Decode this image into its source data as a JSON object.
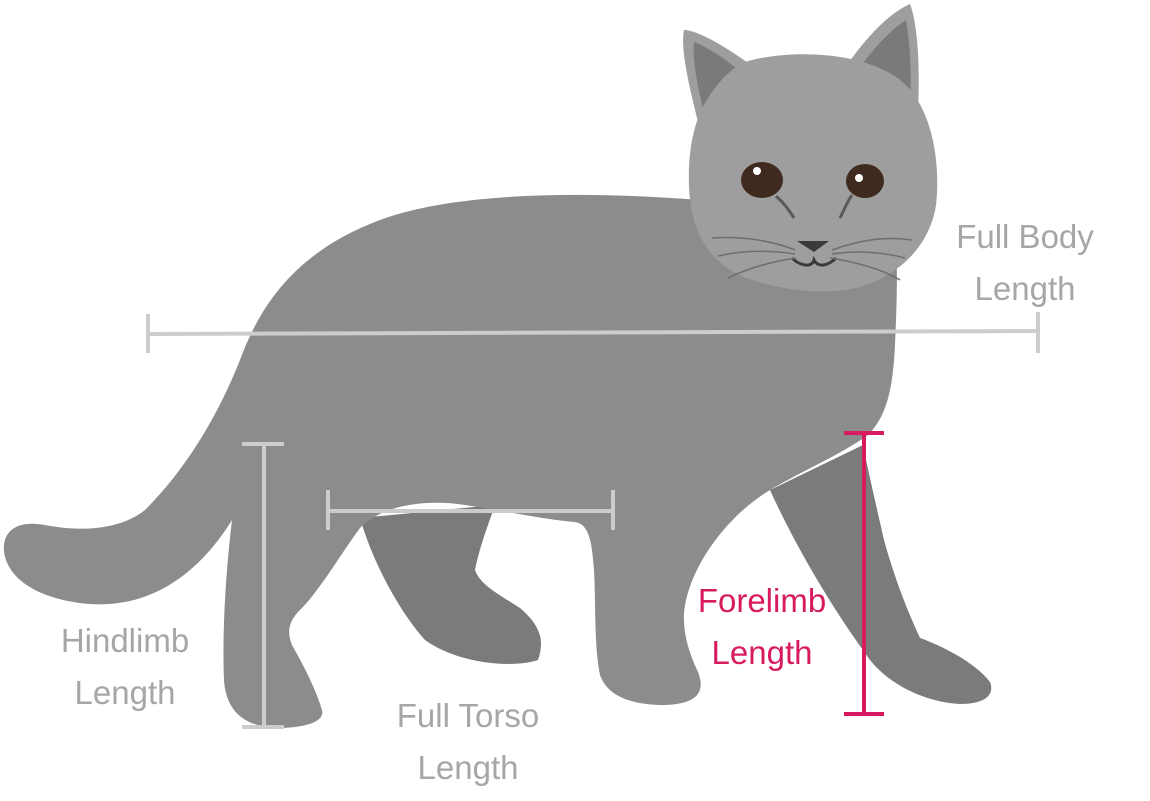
{
  "labels": {
    "full_body": {
      "line1": "Full Body",
      "line2": "Length"
    },
    "hindlimb": {
      "line1": "Hindlimb",
      "line2": "Length"
    },
    "full_torso": {
      "line1": "Full Torso",
      "line2": "Length"
    },
    "forelimb": {
      "line1": "Forelimb",
      "line2": "Length"
    }
  },
  "colors": {
    "cat_body": "#8c8c8c",
    "cat_far_leg": "#7b7b7b",
    "cat_head": "#9e9e9e",
    "ear_inner": "#7a7a7a",
    "measure_line": "#cccccc",
    "label_gray": "#a6a6a6",
    "highlight": "#d81b60",
    "eye": "#3e2a1f"
  },
  "icons": {
    "illustration": "cat-silhouette"
  }
}
